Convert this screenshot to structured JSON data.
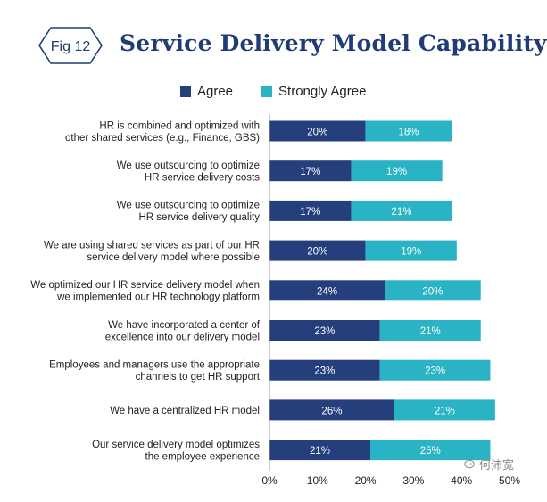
{
  "badge": {
    "label": "Fig 12"
  },
  "title": "Service Delivery Model Capability",
  "colors": {
    "agree": "#253f7d",
    "strongly_agree": "#29b3c4",
    "title": "#1f3c78",
    "badge": "#1f3c78"
  },
  "watermark": {
    "text": "何沛宽"
  },
  "chart_data": {
    "type": "bar",
    "orientation": "horizontal",
    "stacked": true,
    "title": "Service Delivery Model Capability",
    "legend_position": "top",
    "categories": [
      [
        "HR is combined and optimized with",
        "other shared services (e.g., Finance, GBS)"
      ],
      [
        "We use outsourcing to optimize",
        "HR service delivery costs"
      ],
      [
        "We use outsourcing to optimize",
        "HR service delivery quality"
      ],
      [
        "We are using shared services as part of our HR",
        "service delivery model where possible"
      ],
      [
        "We optimized our HR service delivery model when",
        "we implemented our HR technology platform"
      ],
      [
        "We have incorporated a center of",
        "excellence into our delivery model"
      ],
      [
        "Employees and managers use the appropriate",
        "channels to get HR support"
      ],
      [
        "We have a centralized HR model"
      ],
      [
        "Our service delivery model optimizes",
        "the employee experience"
      ]
    ],
    "series": [
      {
        "name": "Agree",
        "values": [
          20,
          17,
          17,
          20,
          24,
          23,
          23,
          26,
          21
        ]
      },
      {
        "name": "Strongly Agree",
        "values": [
          18,
          19,
          21,
          19,
          20,
          21,
          23,
          21,
          25
        ]
      }
    ],
    "xlim": [
      0,
      50
    ],
    "xticks": [
      "0%",
      "10%",
      "20%",
      "30%",
      "40%",
      "50%"
    ],
    "unit": "%"
  }
}
